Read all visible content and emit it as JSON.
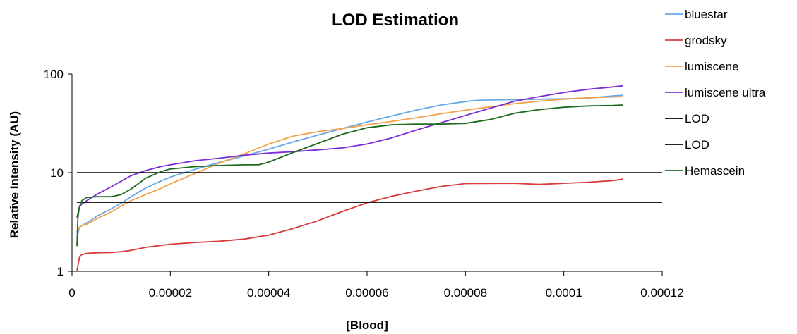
{
  "chart_data": {
    "type": "line",
    "title": "LOD Estimation",
    "xlabel": "[Blood]",
    "ylabel": "Relative Intensity (AU)",
    "xlim": [
      0,
      0.00012
    ],
    "ylim": [
      1,
      100
    ],
    "yscale": "log",
    "grid": false,
    "legend": "right",
    "x_ticks": [
      {
        "value": 0,
        "label": "0"
      },
      {
        "value": 2e-05,
        "label": "0.00002"
      },
      {
        "value": 4e-05,
        "label": "0.00004"
      },
      {
        "value": 6e-05,
        "label": "0.00006"
      },
      {
        "value": 8e-05,
        "label": "0.00008"
      },
      {
        "value": 0.0001,
        "label": "0.0001"
      },
      {
        "value": 0.00012,
        "label": "0.00012"
      }
    ],
    "y_ticks": [
      {
        "value": 1,
        "label": "1"
      },
      {
        "value": 10,
        "label": "10"
      },
      {
        "value": 100,
        "label": "100"
      }
    ],
    "series": [
      {
        "name": "bluestar",
        "color": "#66a8e8",
        "x": [
          1e-06,
          1.5e-06,
          2e-06,
          3e-06,
          5e-06,
          8e-06,
          1e-05,
          1.2e-05,
          1.5e-05,
          1.8e-05,
          2e-05,
          2.5e-05,
          3e-05,
          3.5e-05,
          4e-05,
          4.5e-05,
          5e-05,
          5.5e-05,
          6e-05,
          6.5e-05,
          7e-05,
          7.5e-05,
          8e-05,
          8.2e-05,
          8.5e-05,
          9e-05,
          9.5e-05,
          0.0001,
          0.000105,
          0.00011,
          0.000112
        ],
        "y": [
          2.2,
          2.8,
          2.9,
          3.1,
          3.6,
          4.3,
          4.9,
          5.7,
          7.0,
          8.2,
          9.0,
          10.8,
          12.7,
          14.8,
          17.3,
          20.5,
          24.0,
          28.0,
          32.5,
          37.5,
          43.0,
          48.5,
          52.5,
          54.0,
          54.5,
          55.0,
          55.5,
          56.0,
          57.0,
          60.0,
          61.0
        ]
      },
      {
        "name": "grodsky",
        "color": "#d83a3a",
        "x": [
          1e-06,
          1.5e-06,
          2e-06,
          3e-06,
          5e-06,
          8e-06,
          1e-05,
          1.2e-05,
          1.5e-05,
          1.8e-05,
          2e-05,
          2.5e-05,
          3e-05,
          3.5e-05,
          4e-05,
          4.5e-05,
          5e-05,
          5.5e-05,
          6e-05,
          6.5e-05,
          7e-05,
          7.5e-05,
          8e-05,
          9e-05,
          9.5e-05,
          0.0001,
          0.000105,
          0.00011,
          0.000112
        ],
        "y": [
          1.0,
          1.38,
          1.48,
          1.52,
          1.54,
          1.55,
          1.58,
          1.63,
          1.75,
          1.83,
          1.88,
          1.96,
          2.02,
          2.12,
          2.33,
          2.72,
          3.25,
          4.05,
          4.95,
          5.75,
          6.5,
          7.25,
          7.75,
          7.8,
          7.6,
          7.8,
          8.0,
          8.3,
          8.6
        ]
      },
      {
        "name": "lumiscene",
        "color": "#f5a24b",
        "x": [
          1e-06,
          1.5e-06,
          2e-06,
          3e-06,
          5e-06,
          8e-06,
          1e-05,
          1.2e-05,
          1.5e-05,
          1.8e-05,
          2e-05,
          2.5e-05,
          3e-05,
          3.5e-05,
          4e-05,
          4.5e-05,
          5e-05,
          5.5e-05,
          6e-05,
          6.5e-05,
          7e-05,
          7.5e-05,
          8e-05,
          8.5e-05,
          9e-05,
          9.5e-05,
          0.0001,
          0.000105,
          0.00011,
          0.000112
        ],
        "y": [
          2.5,
          2.8,
          2.9,
          3.0,
          3.4,
          4.0,
          4.6,
          5.2,
          6.0,
          6.9,
          7.7,
          9.8,
          12.5,
          15.5,
          19.5,
          23.5,
          26.0,
          28.0,
          30.5,
          33.0,
          36.0,
          39.5,
          43.0,
          46.5,
          50.0,
          53.0,
          55.5,
          57.5,
          58.5,
          59.0
        ]
      },
      {
        "name": "lumiscene ultra",
        "color": "#7a2fd6",
        "x": [
          1e-06,
          1.5e-06,
          2e-06,
          3e-06,
          5e-06,
          8e-06,
          1e-05,
          1.2e-05,
          1.5e-05,
          1.8e-05,
          2e-05,
          2.5e-05,
          3e-05,
          3.5e-05,
          4e-05,
          4.5e-05,
          5e-05,
          5.5e-05,
          6e-05,
          6.5e-05,
          7e-05,
          7.5e-05,
          8e-05,
          8.5e-05,
          9e-05,
          9.5e-05,
          0.0001,
          0.000105,
          0.00011,
          0.000112
        ],
        "y": [
          3.5,
          4.5,
          4.8,
          5.2,
          6.0,
          7.2,
          8.2,
          9.3,
          10.5,
          11.5,
          12.0,
          13.2,
          14.0,
          15.0,
          15.8,
          16.3,
          17.0,
          17.8,
          19.5,
          22.5,
          27.0,
          32.0,
          38.0,
          45.0,
          53.0,
          59.0,
          65.0,
          70.0,
          74.0,
          76.0
        ]
      },
      {
        "name": "LOD",
        "color": "#000000",
        "x": [
          1e-06,
          0.00012
        ],
        "y": [
          10,
          10
        ]
      },
      {
        "name": "LOD",
        "color": "#000000",
        "x": [
          1e-06,
          0.00012
        ],
        "y": [
          5,
          5
        ]
      },
      {
        "name": "Hemascein",
        "color": "#1e6b1e",
        "x": [
          1e-06,
          1.2e-06,
          1.5e-06,
          2e-06,
          3e-06,
          5e-06,
          8e-06,
          1e-05,
          1.2e-05,
          1.5e-05,
          1.8e-05,
          2e-05,
          2.5e-05,
          3e-05,
          3.5e-05,
          3.8e-05,
          4e-05,
          4.5e-05,
          5e-05,
          5.5e-05,
          6e-05,
          6.5e-05,
          7e-05,
          7.5e-05,
          8e-05,
          8.5e-05,
          9e-05,
          9.5e-05,
          0.0001,
          0.000105,
          0.00011,
          0.000112
        ],
        "y": [
          1.8,
          3.5,
          4.5,
          5.2,
          5.6,
          5.7,
          5.7,
          6.0,
          6.8,
          8.8,
          10.2,
          10.9,
          11.5,
          11.8,
          12.0,
          12.0,
          12.8,
          16.0,
          19.8,
          24.5,
          28.5,
          30.5,
          31.0,
          31.0,
          31.5,
          34.5,
          40.0,
          43.5,
          46.0,
          47.5,
          48.0,
          48.5
        ]
      }
    ]
  }
}
